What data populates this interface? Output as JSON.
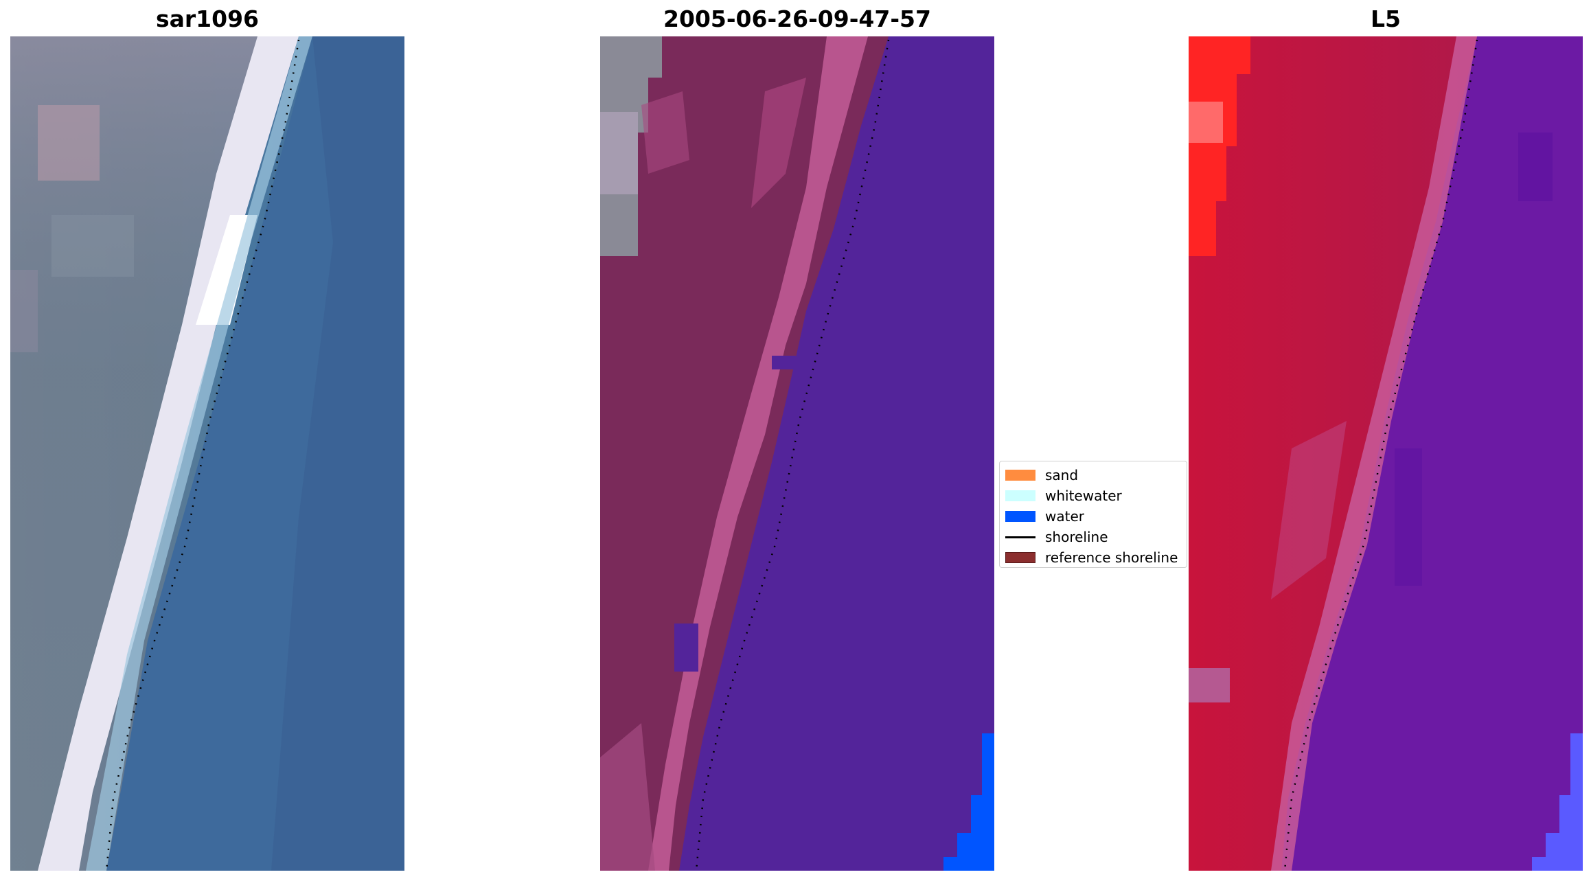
{
  "panels": [
    {
      "title": "sar1096",
      "kind": "rgb",
      "icon": "rgb-satellite-image"
    },
    {
      "title": "2005-06-26-09-47-57",
      "kind": "classified",
      "icon": "classified-image"
    },
    {
      "title": "L5",
      "kind": "false-color",
      "icon": "false-color-image"
    }
  ],
  "legend": {
    "items": [
      {
        "label": "sand",
        "type": "patch",
        "color": "#ff8c3f"
      },
      {
        "label": "whitewater",
        "type": "patch",
        "color": "#ccffff"
      },
      {
        "label": "water",
        "type": "patch",
        "color": "#0055ff"
      },
      {
        "label": "shoreline",
        "type": "line",
        "color": "#000000"
      },
      {
        "label": "reference shoreline",
        "type": "patch",
        "color": "#8b2e2e"
      }
    ]
  },
  "colors": {
    "rgb_water": "#3f6a9c",
    "rgb_land": "#6b7d8f",
    "rgb_whitewater": "#f2f0f8",
    "classified_water": "#53249a",
    "classified_land": "#7a2a5a",
    "classified_sand_mix": "#b8558e",
    "falsecolor_land": "#c8123a",
    "falsecolor_water": "#6a1aa6",
    "falsecolor_bright": "#ff2020",
    "water_blue": "#0055ff"
  }
}
